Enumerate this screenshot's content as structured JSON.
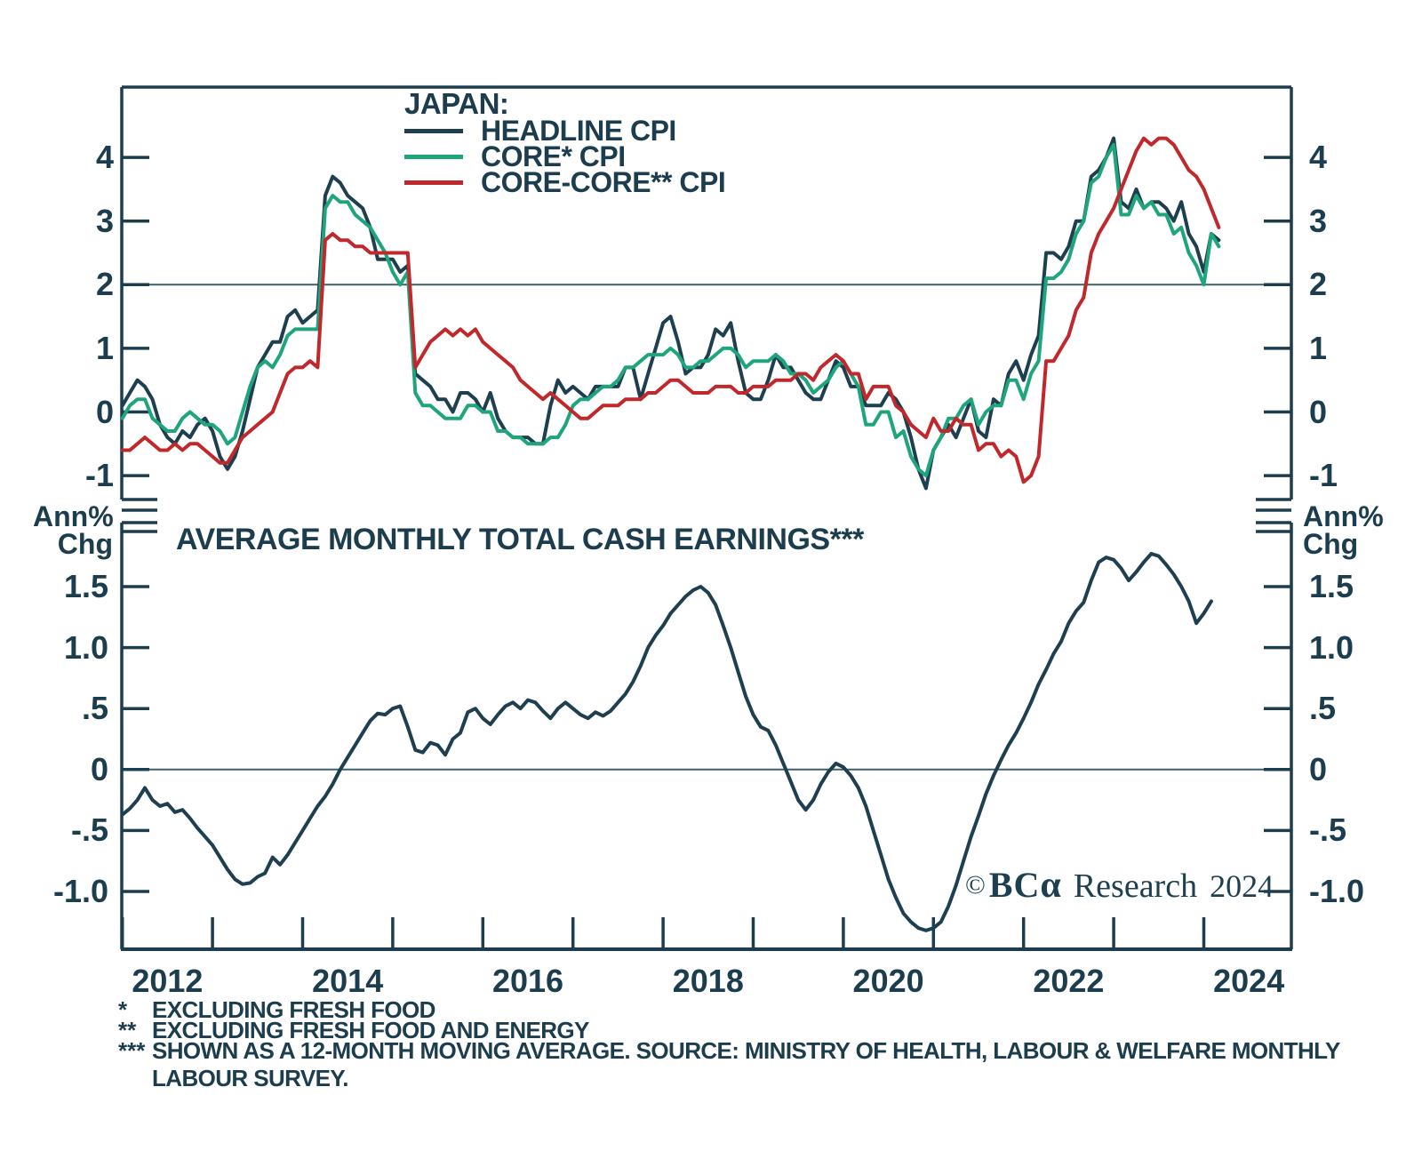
{
  "colors": {
    "text": "#1c3d4d",
    "axis": "#1c3d4d",
    "ref_line": "#3f6068",
    "background": "#ffffff",
    "headline": "#1e3f4f",
    "core": "#1ea57b",
    "core_core": "#c0282c"
  },
  "legend": {
    "region": "JAPAN:",
    "items": [
      {
        "label": "HEADLINE CPI",
        "color": "#1e3f4f"
      },
      {
        "label": "CORE* CPI",
        "color": "#1ea57b"
      },
      {
        "label": "CORE-CORE** CPI",
        "color": "#c0282c"
      }
    ]
  },
  "axis_unit": {
    "line1": "Ann%",
    "line2": "Chg"
  },
  "watermark": {
    "copyright": "©",
    "brand": "BC",
    "alpha": "α",
    "suffix": "Research",
    "year": "2024"
  },
  "footnotes": [
    {
      "marker": "*",
      "text": "EXCLUDING FRESH FOOD"
    },
    {
      "marker": "**",
      "text": "EXCLUDING FRESH FOOD AND ENERGY"
    },
    {
      "marker": "***",
      "text": "SHOWN AS A 12-MONTH MOVING AVERAGE. SOURCE: MINISTRY OF HEALTH, LABOUR & WELFARE MONTHLY LABOUR SURVEY."
    }
  ],
  "chart_data": [
    {
      "type": "line",
      "title": "JAPAN: HEADLINE, CORE AND CORE-CORE CPI",
      "ylabel": "Ann% Chg",
      "ylim": [
        -1.38,
        5.1
      ],
      "ytick_labels": [
        "4",
        "3",
        "2",
        "1",
        "0",
        "-1"
      ],
      "ytick_values": [
        4,
        3,
        2,
        1,
        0,
        -1
      ],
      "ref_line": 2,
      "grid": false,
      "legend_position": "top-left-inside",
      "x_unit": "year",
      "frequency": "monthly",
      "x_start": 2012.0,
      "x_end": 2024.17,
      "series": [
        {
          "name": "HEADLINE CPI",
          "color": "#1e3f4f",
          "values": [
            0.1,
            0.3,
            0.5,
            0.4,
            0.2,
            -0.2,
            -0.4,
            -0.5,
            -0.3,
            -0.4,
            -0.2,
            -0.1,
            -0.3,
            -0.7,
            -0.9,
            -0.7,
            -0.3,
            0.2,
            0.7,
            0.9,
            1.1,
            1.1,
            1.5,
            1.6,
            1.4,
            1.5,
            1.6,
            3.4,
            3.7,
            3.6,
            3.4,
            3.3,
            3.2,
            2.9,
            2.4,
            2.4,
            2.4,
            2.2,
            2.3,
            0.6,
            0.5,
            0.4,
            0.2,
            0.2,
            0.0,
            0.3,
            0.3,
            0.2,
            0.0,
            0.3,
            -0.1,
            -0.3,
            -0.4,
            -0.4,
            -0.4,
            -0.5,
            -0.5,
            0.1,
            0.5,
            0.3,
            0.4,
            0.3,
            0.2,
            0.4,
            0.4,
            0.4,
            0.4,
            0.7,
            0.7,
            0.2,
            0.6,
            1.0,
            1.4,
            1.5,
            1.1,
            0.6,
            0.7,
            0.7,
            0.9,
            1.3,
            1.2,
            1.4,
            0.8,
            0.3,
            0.2,
            0.2,
            0.5,
            0.9,
            0.7,
            0.7,
            0.5,
            0.3,
            0.2,
            0.2,
            0.5,
            0.8,
            0.7,
            0.4,
            0.4,
            0.1,
            0.1,
            0.1,
            0.3,
            0.2,
            0.0,
            -0.4,
            -0.9,
            -1.2,
            -0.6,
            -0.4,
            -0.2,
            -0.4,
            -0.1,
            0.2,
            -0.3,
            -0.4,
            0.2,
            0.1,
            0.6,
            0.8,
            0.5,
            0.9,
            1.2,
            2.5,
            2.5,
            2.4,
            2.6,
            3.0,
            3.0,
            3.7,
            3.8,
            4.0,
            4.3,
            3.3,
            3.2,
            3.5,
            3.2,
            3.3,
            3.3,
            3.2,
            3.0,
            3.3,
            2.8,
            2.6,
            2.2,
            2.8,
            2.7
          ]
        },
        {
          "name": "CORE* CPI",
          "color": "#1ea57b",
          "values": [
            -0.1,
            0.1,
            0.2,
            0.2,
            -0.1,
            -0.2,
            -0.3,
            -0.3,
            -0.1,
            0.0,
            -0.1,
            -0.2,
            -0.2,
            -0.3,
            -0.5,
            -0.4,
            0.0,
            0.4,
            0.7,
            0.8,
            0.7,
            0.9,
            1.2,
            1.3,
            1.3,
            1.3,
            1.3,
            3.2,
            3.4,
            3.3,
            3.3,
            3.1,
            3.0,
            2.9,
            2.7,
            2.5,
            2.2,
            2.0,
            2.2,
            0.3,
            0.1,
            0.1,
            0.0,
            -0.1,
            -0.1,
            -0.1,
            0.1,
            0.1,
            0.0,
            0.0,
            -0.3,
            -0.3,
            -0.4,
            -0.4,
            -0.5,
            -0.5,
            -0.5,
            -0.4,
            -0.4,
            -0.2,
            0.1,
            0.2,
            0.2,
            0.3,
            0.4,
            0.4,
            0.5,
            0.7,
            0.7,
            0.8,
            0.9,
            0.9,
            0.9,
            1.0,
            0.9,
            0.7,
            0.7,
            0.8,
            0.8,
            0.9,
            1.0,
            1.0,
            0.9,
            0.7,
            0.8,
            0.8,
            0.8,
            0.9,
            0.8,
            0.6,
            0.6,
            0.5,
            0.3,
            0.4,
            0.5,
            0.7,
            0.8,
            0.6,
            0.4,
            -0.2,
            -0.2,
            0.0,
            0.0,
            -0.4,
            -0.3,
            -0.7,
            -0.9,
            -1.0,
            -0.6,
            -0.4,
            -0.1,
            -0.1,
            0.1,
            0.2,
            -0.2,
            0.0,
            0.1,
            0.1,
            0.5,
            0.5,
            0.2,
            0.6,
            0.8,
            2.1,
            2.1,
            2.2,
            2.4,
            2.8,
            3.0,
            3.6,
            3.7,
            4.0,
            4.2,
            3.1,
            3.1,
            3.4,
            3.2,
            3.3,
            3.1,
            3.1,
            2.8,
            2.9,
            2.5,
            2.3,
            2.0,
            2.8,
            2.6
          ]
        },
        {
          "name": "CORE-CORE** CPI",
          "color": "#c0282c",
          "values": [
            -0.6,
            -0.6,
            -0.5,
            -0.4,
            -0.5,
            -0.6,
            -0.6,
            -0.5,
            -0.6,
            -0.5,
            -0.5,
            -0.6,
            -0.7,
            -0.8,
            -0.8,
            -0.6,
            -0.4,
            -0.3,
            -0.2,
            -0.1,
            0.0,
            0.3,
            0.6,
            0.7,
            0.7,
            0.8,
            0.7,
            2.7,
            2.8,
            2.7,
            2.7,
            2.6,
            2.6,
            2.5,
            2.5,
            2.5,
            2.5,
            2.5,
            2.5,
            0.7,
            0.9,
            1.1,
            1.2,
            1.3,
            1.2,
            1.3,
            1.2,
            1.3,
            1.1,
            1.0,
            0.9,
            0.8,
            0.7,
            0.5,
            0.4,
            0.3,
            0.2,
            0.3,
            0.2,
            0.1,
            0.0,
            -0.1,
            -0.1,
            0.0,
            0.1,
            0.1,
            0.1,
            0.2,
            0.2,
            0.2,
            0.3,
            0.3,
            0.4,
            0.5,
            0.5,
            0.4,
            0.3,
            0.3,
            0.3,
            0.4,
            0.4,
            0.4,
            0.3,
            0.3,
            0.4,
            0.4,
            0.4,
            0.5,
            0.5,
            0.5,
            0.6,
            0.6,
            0.5,
            0.7,
            0.8,
            0.9,
            0.8,
            0.6,
            0.6,
            0.2,
            0.4,
            0.4,
            0.4,
            0.1,
            0.0,
            -0.2,
            -0.3,
            -0.4,
            -0.1,
            -0.3,
            -0.3,
            -0.1,
            -0.2,
            -0.2,
            -0.6,
            -0.5,
            -0.5,
            -0.7,
            -0.6,
            -0.7,
            -1.1,
            -1.0,
            -0.7,
            0.8,
            0.8,
            1.0,
            1.2,
            1.6,
            1.8,
            2.5,
            2.8,
            3.0,
            3.2,
            3.5,
            3.8,
            4.1,
            4.3,
            4.2,
            4.3,
            4.3,
            4.2,
            4.0,
            3.8,
            3.7,
            3.5,
            3.2,
            2.9
          ]
        }
      ],
      "xtick_years": [
        2012,
        2013,
        2014,
        2015,
        2016,
        2017,
        2018,
        2019,
        2020,
        2021,
        2022,
        2023,
        2024
      ],
      "xlabel_years": [
        "2012",
        "2014",
        "2016",
        "2018",
        "2020",
        "2022",
        "2024"
      ]
    },
    {
      "type": "line",
      "title": "AVERAGE MONTHLY TOTAL CASH EARNINGS***",
      "ylabel": "Ann% Chg",
      "ylim": [
        -1.47,
        2.02
      ],
      "ytick_labels": [
        "1.5",
        "1.0",
        ".5",
        "0",
        "-.5",
        "-1.0"
      ],
      "ytick_values": [
        1.5,
        1.0,
        0.5,
        0,
        -0.5,
        -1.0
      ],
      "ref_line": 0,
      "grid": false,
      "x_unit": "year",
      "frequency": "monthly",
      "x_start": 2012.0,
      "x_end": 2024.08,
      "series": [
        {
          "name": "AVERAGE MONTHLY TOTAL CASH EARNINGS (12-MONTH MOVING AVERAGE)",
          "color": "#1e3f4f",
          "values": [
            -0.37,
            -0.32,
            -0.25,
            -0.15,
            -0.25,
            -0.3,
            -0.28,
            -0.35,
            -0.33,
            -0.4,
            -0.48,
            -0.55,
            -0.62,
            -0.72,
            -0.82,
            -0.9,
            -0.94,
            -0.93,
            -0.88,
            -0.85,
            -0.72,
            -0.78,
            -0.7,
            -0.6,
            -0.5,
            -0.4,
            -0.3,
            -0.22,
            -0.12,
            0.0,
            0.1,
            0.2,
            0.3,
            0.4,
            0.46,
            0.45,
            0.5,
            0.52,
            0.35,
            0.16,
            0.14,
            0.22,
            0.2,
            0.12,
            0.25,
            0.3,
            0.47,
            0.5,
            0.42,
            0.37,
            0.45,
            0.52,
            0.55,
            0.5,
            0.57,
            0.55,
            0.48,
            0.42,
            0.5,
            0.55,
            0.5,
            0.45,
            0.42,
            0.47,
            0.44,
            0.48,
            0.55,
            0.62,
            0.72,
            0.85,
            1.0,
            1.1,
            1.18,
            1.28,
            1.35,
            1.42,
            1.47,
            1.5,
            1.45,
            1.35,
            1.18,
            1.0,
            0.8,
            0.6,
            0.45,
            0.35,
            0.32,
            0.2,
            0.05,
            -0.1,
            -0.25,
            -0.33,
            -0.25,
            -0.12,
            -0.02,
            0.05,
            0.02,
            -0.05,
            -0.15,
            -0.3,
            -0.5,
            -0.7,
            -0.9,
            -1.05,
            -1.18,
            -1.25,
            -1.3,
            -1.32,
            -1.3,
            -1.25,
            -1.12,
            -0.95,
            -0.75,
            -0.55,
            -0.38,
            -0.2,
            -0.05,
            0.08,
            0.2,
            0.3,
            0.42,
            0.55,
            0.7,
            0.82,
            0.95,
            1.05,
            1.2,
            1.3,
            1.37,
            1.55,
            1.7,
            1.74,
            1.72,
            1.65,
            1.55,
            1.62,
            1.7,
            1.77,
            1.75,
            1.68,
            1.6,
            1.5,
            1.38,
            1.2,
            1.28,
            1.38
          ]
        }
      ],
      "xtick_years": [
        2012,
        2013,
        2014,
        2015,
        2016,
        2017,
        2018,
        2019,
        2020,
        2021,
        2022,
        2023,
        2024
      ],
      "xlabel_years": [
        "2012",
        "2014",
        "2016",
        "2018",
        "2020",
        "2022",
        "2024"
      ]
    }
  ]
}
